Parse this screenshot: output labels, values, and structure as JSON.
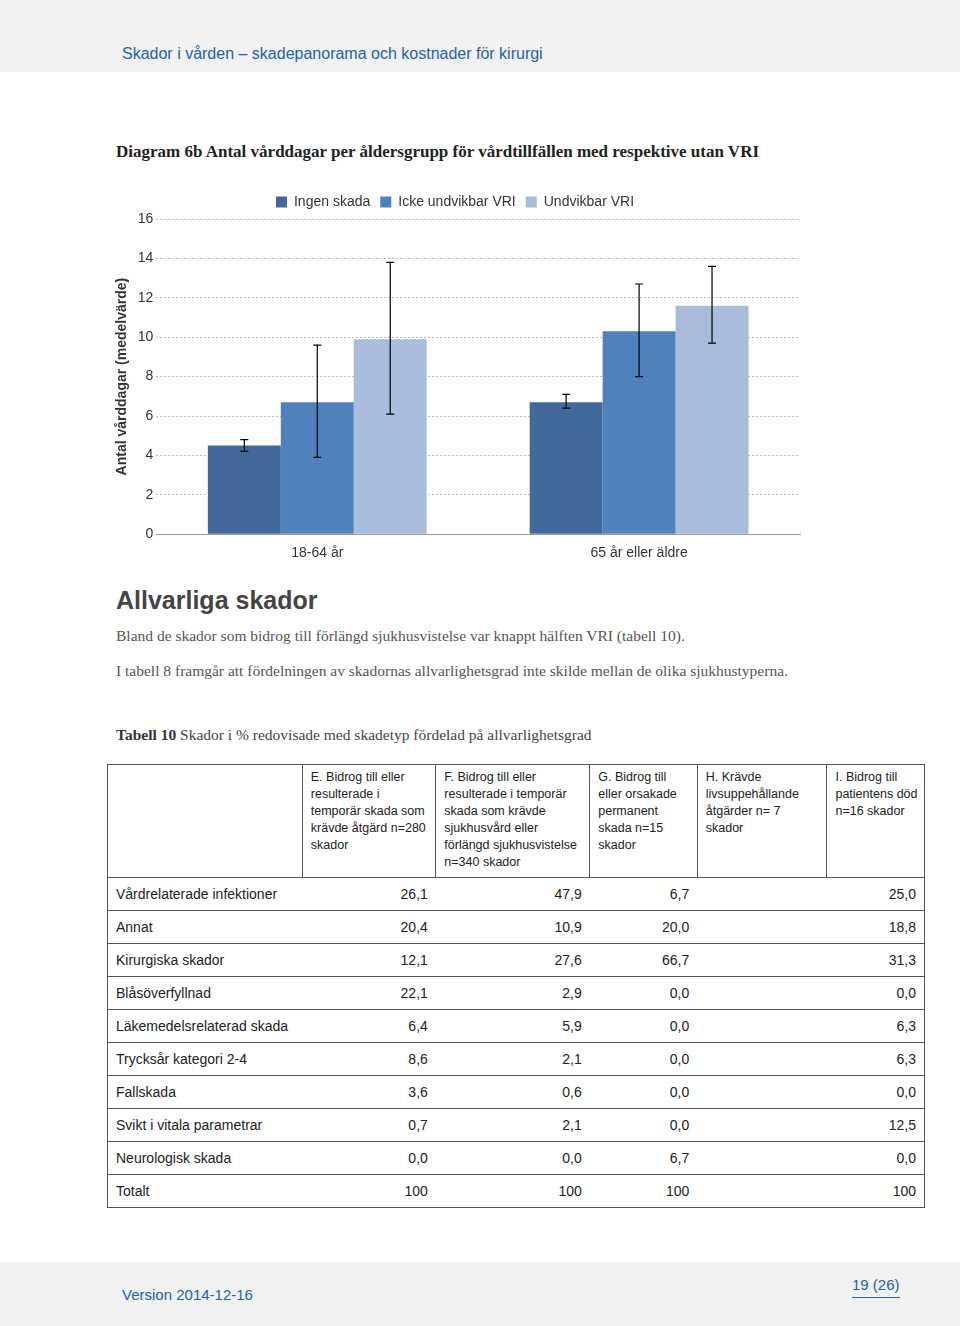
{
  "header": {
    "title": "Skador i vården – skadepanorama och kostnader för kirurgi"
  },
  "chart_data": {
    "type": "bar",
    "title": "Diagram 6b Antal vårddagar per åldersgrupp för vårdtillfällen med respektive utan VRI",
    "y_label": "Antal vårddagar (medelvärde)",
    "categories": [
      "18-64 år",
      "65 år eller äldre"
    ],
    "series": [
      {
        "name": "Ingen skada",
        "color": "#41699c",
        "values": [
          4.5,
          6.7
        ],
        "error_low": [
          4.2,
          6.4
        ],
        "error_high": [
          4.8,
          7.1
        ]
      },
      {
        "name": "Icke undvikbar VRI",
        "color": "#4f81bd",
        "values": [
          6.7,
          10.3
        ],
        "error_low": [
          3.9,
          8.0
        ],
        "error_high": [
          9.6,
          12.7
        ]
      },
      {
        "name": "Undvikbar VRI",
        "color": "#a9bcdb",
        "values": [
          9.9,
          11.6
        ],
        "error_low": [
          6.1,
          9.7
        ],
        "error_high": [
          13.8,
          13.6
        ]
      }
    ],
    "ylim": [
      0,
      16
    ],
    "yticks": [
      0,
      2,
      4,
      6,
      8,
      10,
      12,
      14,
      16
    ],
    "grid": true,
    "legend": "top"
  },
  "section": {
    "heading": "Allvarliga skador",
    "paragraphs": [
      "Bland de skador som bidrog till förlängd sjukhusvistelse var knappt hälften VRI (tabell 10).",
      "I tabell 8 framgår att fördelningen av skadornas allvarlighetsgrad inte skilde mellan de olika sjukhustyperna."
    ]
  },
  "table": {
    "caption_label": "Tabell 10",
    "caption": "Skador i % redovisade med skadetyp fördelad på allvarlighetsgrad",
    "columns": [
      "E. Bidrog till eller resulterade i temporär skada som krävde åtgärd n=280 skador",
      "F. Bidrog till eller resulterade i temporär skada som krävde sjukhusvård eller förlängd sjukhusvistelse n=340 skador",
      "G. Bidrog till eller orsakade permanent skada n=15 skador",
      "H. Krävde livsuppehållande åtgärder n= 7 skador",
      "I. Bidrog till patientens död n=16 skador"
    ],
    "rows": [
      [
        "Vårdrelaterade infektioner",
        "26,1",
        "47,9",
        "6,7",
        "25,0"
      ],
      [
        "Annat",
        "20,4",
        "10,9",
        "20,0",
        "18,8"
      ],
      [
        "Kirurgiska skador",
        "12,1",
        "27,6",
        "66,7",
        "31,3"
      ],
      [
        "Blåsöverfyllnad",
        "22,1",
        "2,9",
        "0,0",
        "0,0"
      ],
      [
        "Läkemedelsrelaterad skada",
        "6,4",
        "5,9",
        "0,0",
        "6,3"
      ],
      [
        "Trycksår kategori 2-4",
        "8,6",
        "2,1",
        "0,0",
        "6,3"
      ],
      [
        "Fallskada",
        "3,6",
        "0,6",
        "0,0",
        "0,0"
      ],
      [
        "Svikt i vitala parametrar",
        "0,7",
        "2,1",
        "0,0",
        "12,5"
      ],
      [
        "Neurologisk skada",
        "0,0",
        "0,0",
        "6,7",
        "0,0"
      ],
      [
        "Totalt",
        "100",
        "100",
        "100",
        "100"
      ]
    ]
  },
  "footer": {
    "version": "Version 2014-12-16",
    "page": "19 (26)"
  }
}
